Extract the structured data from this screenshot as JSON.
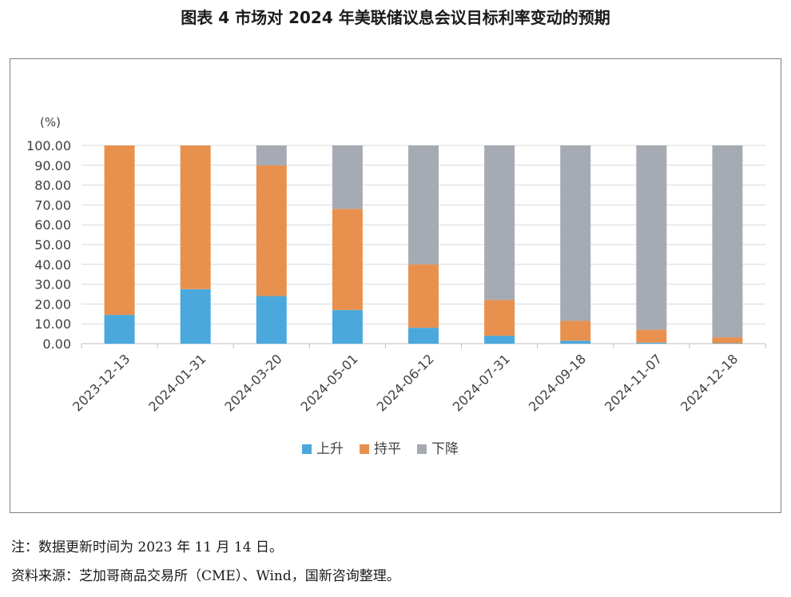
{
  "title": "图表 4  市场对 2024 年美联储议息会议目标利率变动的预期",
  "notes": {
    "note": "注：数据更新时间为 2023 年 11 月 14 日。",
    "source": "资料来源：芝加哥商品交易所（CME）、Wind，国新咨询整理。"
  },
  "chart_data": {
    "type": "bar",
    "stacked": true,
    "title": "图表 4  市场对 2024 年美联储议息会议目标利率变动的预期",
    "unit_label": "(%)",
    "categories": [
      "2023-12-13",
      "2024-01-31",
      "2024-03-20",
      "2024-05-01",
      "2024-06-12",
      "2024-07-31",
      "2024-09-18",
      "2024-11-07",
      "2024-12-18"
    ],
    "series": [
      {
        "name": "上升",
        "color": "#4aa8dc",
        "values": [
          14.5,
          27.5,
          24.0,
          17.0,
          8.0,
          4.0,
          1.5,
          0.5,
          0.2
        ]
      },
      {
        "name": "持平",
        "color": "#e8914f",
        "values": [
          85.5,
          72.5,
          66.0,
          51.0,
          32.0,
          18.0,
          10.0,
          6.5,
          3.0
        ]
      },
      {
        "name": "下降",
        "color": "#a6aab2",
        "values": [
          0.0,
          0.0,
          10.0,
          32.0,
          60.0,
          78.0,
          88.5,
          93.0,
          96.8
        ]
      }
    ],
    "ylim": [
      0,
      100
    ],
    "yticks": [
      "0.00",
      "10.00",
      "20.00",
      "30.00",
      "40.00",
      "50.00",
      "60.00",
      "70.00",
      "80.00",
      "90.00",
      "100.00"
    ],
    "grid": true,
    "legend_position": "bottom"
  }
}
